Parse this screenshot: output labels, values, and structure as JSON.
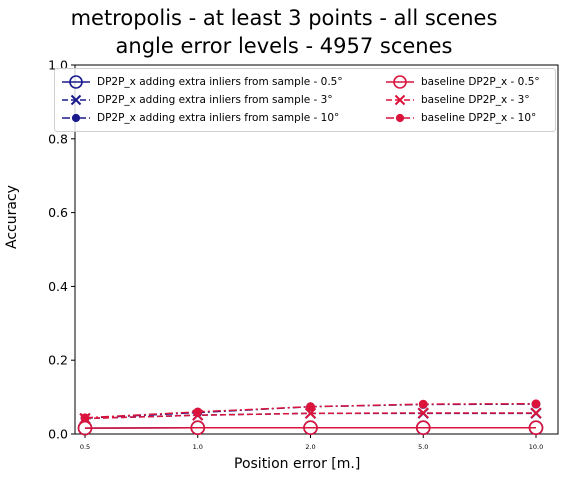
{
  "chart_data": {
    "type": "line",
    "title": [
      "metropolis - at least 3 points - all scenes",
      "angle error levels - 4957 scenes"
    ],
    "xlabel": "Position error [m.]",
    "ylabel": "Accuracy",
    "categories": [
      "0.5",
      "1.0",
      "2.0",
      "5.0",
      "10.0"
    ],
    "ylim": [
      0,
      1.0
    ],
    "yticks": [
      "0.0",
      "0.2",
      "0.4",
      "0.6",
      "0.8",
      "1.0"
    ],
    "grid": false,
    "legend_position": "top",
    "series": [
      {
        "name": "DP2P_x adding extra inliers from sample - 0.5°",
        "color": "#1a1a8c",
        "linestyle": "solid",
        "marker": "open-circle",
        "values": [
          0.016,
          0.017,
          0.017,
          0.017,
          0.017
        ]
      },
      {
        "name": "DP2P_x adding extra inliers from sample - 3°",
        "color": "#1a1a8c",
        "linestyle": "dashed",
        "marker": "x",
        "values": [
          0.042,
          0.051,
          0.056,
          0.056,
          0.056
        ]
      },
      {
        "name": "DP2P_x adding extra inliers from sample - 10°",
        "color": "#1a1a8c",
        "linestyle": "dashdot",
        "marker": "filled-circle",
        "values": [
          0.043,
          0.058,
          0.074,
          0.08,
          0.081
        ]
      },
      {
        "name": "baseline DP2P_x - 0.5°",
        "color": "#dc143c",
        "linestyle": "solid",
        "marker": "open-circle",
        "values": [
          0.016,
          0.017,
          0.017,
          0.017,
          0.017
        ]
      },
      {
        "name": "baseline DP2P_x - 3°",
        "color": "#dc143c",
        "linestyle": "dashed",
        "marker": "x",
        "values": [
          0.042,
          0.051,
          0.056,
          0.057,
          0.057
        ]
      },
      {
        "name": "baseline DP2P_x - 10°",
        "color": "#dc143c",
        "linestyle": "dashdot",
        "marker": "filled-circle",
        "values": [
          0.044,
          0.06,
          0.074,
          0.081,
          0.082
        ]
      }
    ]
  }
}
